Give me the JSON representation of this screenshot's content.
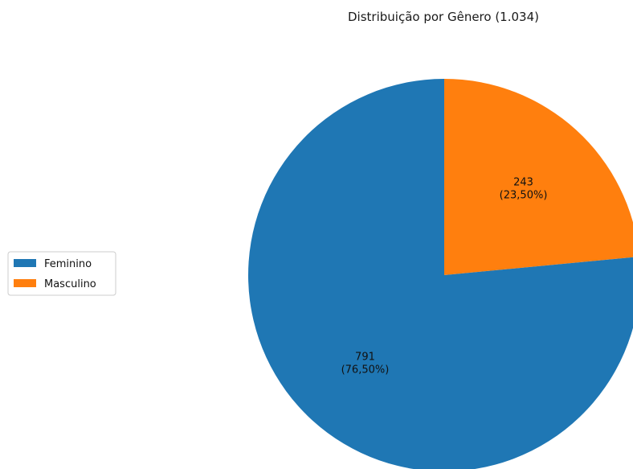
{
  "chart_data": {
    "type": "pie",
    "title": "Distribuição por Gênero (1.034)",
    "slices": [
      {
        "label": "Feminino",
        "value": 791,
        "percent_label": "(76,50%)",
        "color": "#1f77b4"
      },
      {
        "label": "Masculino",
        "value": 243,
        "percent_label": "(23,50%)",
        "color": "#ff7f0e"
      }
    ],
    "legend_position": "left",
    "start_angle_deg": 90,
    "direction": "clockwise-from-top for Masculino"
  }
}
